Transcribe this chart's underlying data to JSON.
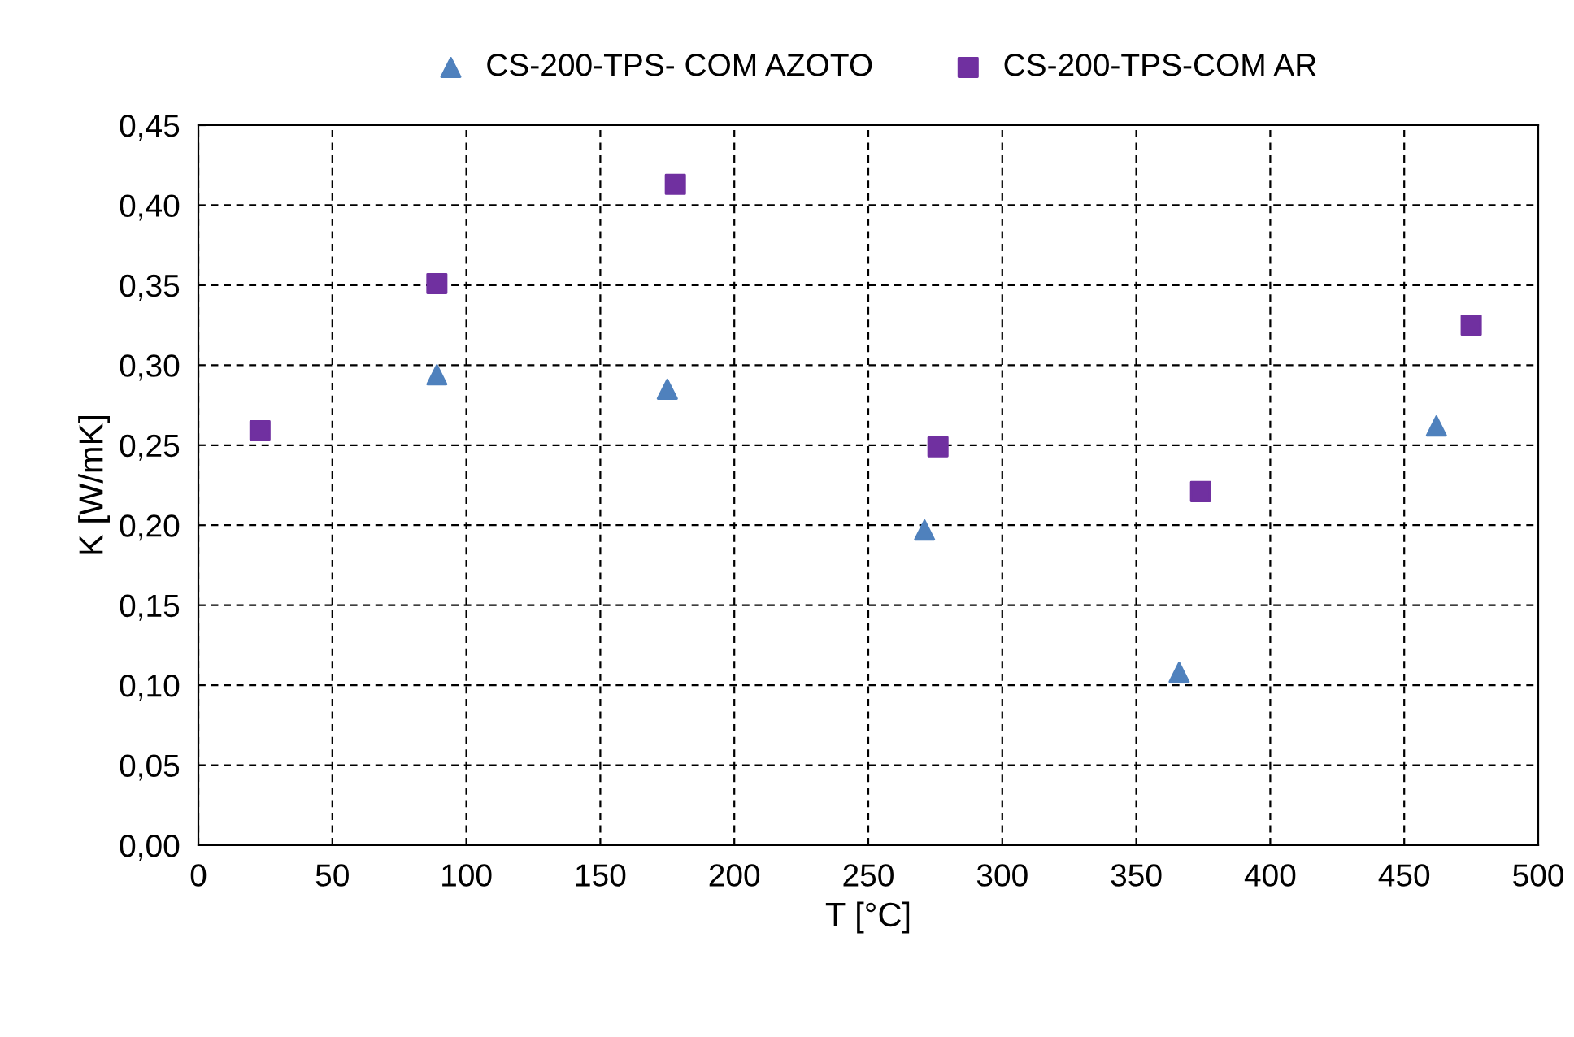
{
  "chart_data": {
    "type": "scatter",
    "xlabel": "T [°C]",
    "ylabel": "K [W/mK]",
    "xlim": [
      0,
      500
    ],
    "xticks": [
      0,
      50,
      100,
      150,
      200,
      250,
      300,
      350,
      400,
      450,
      500
    ],
    "ylim": [
      0,
      0.45
    ],
    "yticks": [
      {
        "value": 0,
        "label": "0,00"
      },
      {
        "value": 0.05,
        "label": "0,05"
      },
      {
        "value": 0.1,
        "label": "0,10"
      },
      {
        "value": 0.15,
        "label": "0,15"
      },
      {
        "value": 0.2,
        "label": "0,20"
      },
      {
        "value": 0.25,
        "label": "0,25"
      },
      {
        "value": 0.3,
        "label": "0,30"
      },
      {
        "value": 0.35,
        "label": "0,35"
      },
      {
        "value": 0.4,
        "label": "0,40"
      },
      {
        "value": 0.45,
        "label": "0,45"
      }
    ],
    "grid": true,
    "legend": "top",
    "series": [
      {
        "name": "CS-200-TPS- COM AZOTO",
        "color": "#4f81bd",
        "marker": "triangle",
        "x": [
          89,
          175,
          271,
          366,
          462
        ],
        "values": [
          0.294,
          0.285,
          0.197,
          0.108,
          0.262
        ]
      },
      {
        "name": "CS-200-TPS-COM AR",
        "color": "#7030a0",
        "marker": "square",
        "x": [
          23,
          89,
          178,
          276,
          374,
          475
        ],
        "values": [
          0.259,
          0.351,
          0.413,
          0.249,
          0.221,
          0.325
        ]
      }
    ]
  }
}
